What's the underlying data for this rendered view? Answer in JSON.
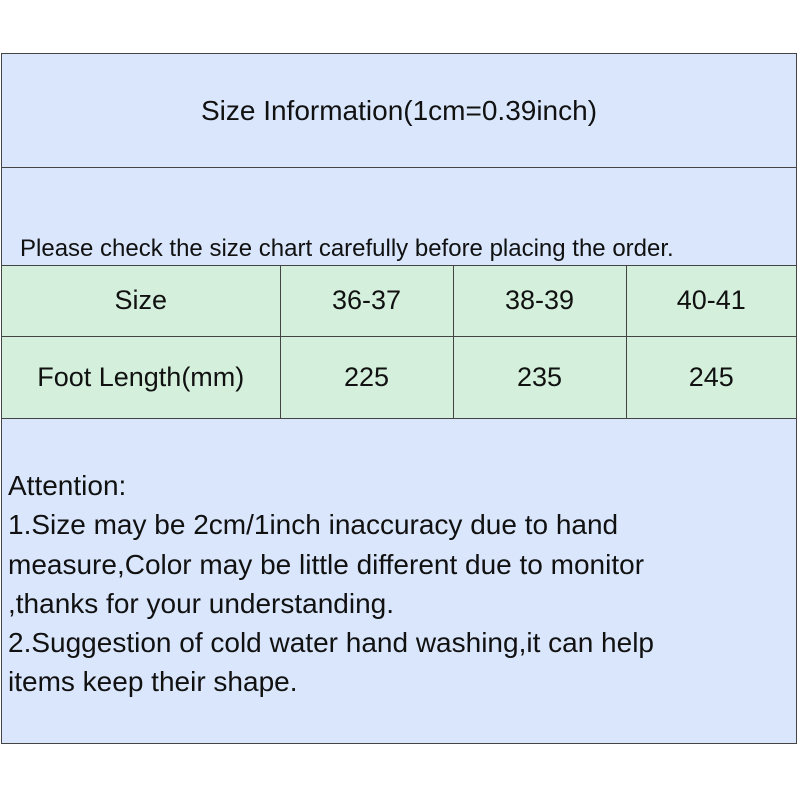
{
  "title": "Size Information(1cm=0.39inch)",
  "subtitle": "Please check the size chart carefully before placing the order.",
  "table": {
    "header": [
      "Size",
      "36-37",
      "38-39",
      "40-41"
    ],
    "rows": [
      [
        "Foot Length(mm)",
        "225",
        "235",
        "245"
      ]
    ]
  },
  "notes": [
    "Attention:",
    "1.Size may be 2cm/1inch inaccuracy due to hand",
    "measure,Color may be little different due to monitor",
    ",thanks for your understanding.",
    "2.Suggestion of cold water hand washing,it can help",
    "items keep their shape."
  ],
  "colors": {
    "header_bg": "#d9e6fb",
    "table_bg": "#d4f0dc",
    "border": "#444444"
  }
}
